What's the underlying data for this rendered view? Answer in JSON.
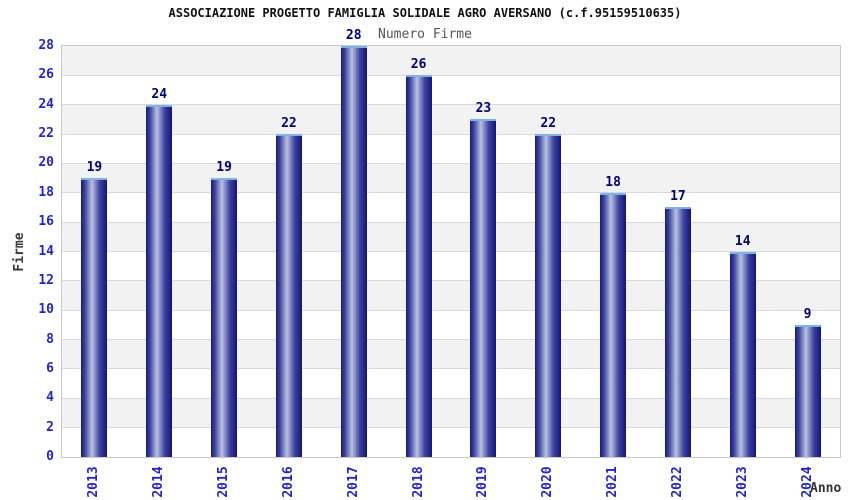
{
  "chart_data": {
    "type": "bar",
    "title": "ASSOCIAZIONE PROGETTO FAMIGLIA SOLIDALE AGRO AVERSANO (c.f.95159510635)",
    "subtitle": "Numero Firme",
    "xlabel": "Anno",
    "ylabel": "Firme",
    "categories": [
      "2013",
      "2014",
      "2015",
      "2016",
      "2017",
      "2018",
      "2019",
      "2020",
      "2021",
      "2022",
      "2023",
      "2024"
    ],
    "values": [
      19,
      24,
      19,
      22,
      28,
      26,
      23,
      22,
      18,
      17,
      14,
      9
    ],
    "ylim": [
      0,
      28
    ],
    "ytick_step": 2,
    "grid": true,
    "legend": "none",
    "plot_bands": "alternating horizontal stripes every 2 units",
    "colors": {
      "bar_edge_dark": "#1a1a80",
      "bar_mid": "#3c429e",
      "bar_highlight": "#b8c2e0",
      "bar_top_cap": "#7db2e8",
      "tick_label_blue": "#2424cc",
      "value_label_navy": "#00006e",
      "title_text": "#111111",
      "subtitle_text": "#555555",
      "axis_label_text": "#3a3a3a",
      "gridline": "#d9d9d9",
      "band_gray": "#f2f2f2",
      "plot_border": "#c9c9c9",
      "background": "#ffffff"
    }
  }
}
